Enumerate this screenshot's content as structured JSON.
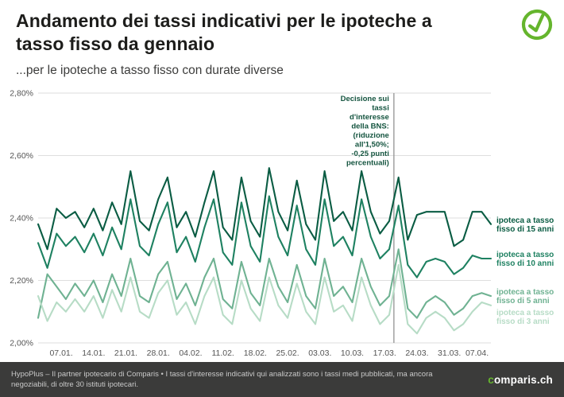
{
  "header": {
    "title": "Andamento dei tassi indicativi per le ipoteche a tasso fisso da gennaio",
    "subtitle": "...per le ipoteche a tasso fisso con durate diverse"
  },
  "footer": {
    "disclaimer": "HypoPlus – Il partner ipotecario di Comparis • I tassi d'interesse indicativi qui analizzati sono i tassi medi pubblicati, ma ancora negoziabili, di oltre 30 istituti ipotecari.",
    "logo_prefix": "c",
    "logo_rest": "omparis.ch"
  },
  "colors": {
    "title": "#1d1d1b",
    "axis_text": "#555555",
    "grid": "#dedede",
    "annotation_line": "#9a9a9a",
    "annotation_text": "#14543f",
    "footer_bg": "#3b3b3a",
    "brand_green": "#65b52d"
  },
  "chart_data": {
    "type": "line",
    "title": "Andamento dei tassi indicativi per le ipoteche a tasso fisso da gennaio",
    "xlabel": "",
    "ylabel": "",
    "ylim": [
      2.0,
      2.8
    ],
    "x_max": 98,
    "grid": "horizontal",
    "legend_position": "right",
    "yticks": [
      {
        "value": 2.0,
        "label": "2,00%"
      },
      {
        "value": 2.2,
        "label": "2,20%"
      },
      {
        "value": 2.4,
        "label": "2,40%"
      },
      {
        "value": 2.6,
        "label": "2,60%"
      },
      {
        "value": 2.8,
        "label": "2,80%"
      }
    ],
    "xticks": [
      {
        "day": 5,
        "label": "07.01."
      },
      {
        "day": 12,
        "label": "14.01."
      },
      {
        "day": 19,
        "label": "21.01."
      },
      {
        "day": 26,
        "label": "28.01."
      },
      {
        "day": 33,
        "label": "04.02."
      },
      {
        "day": 40,
        "label": "11.02."
      },
      {
        "day": 47,
        "label": "18.02."
      },
      {
        "day": 54,
        "label": "25.02."
      },
      {
        "day": 61,
        "label": "03.03."
      },
      {
        "day": 68,
        "label": "10.03."
      },
      {
        "day": 75,
        "label": "17.03."
      },
      {
        "day": 82,
        "label": "24.03."
      },
      {
        "day": 89,
        "label": "31.03."
      },
      {
        "day": 95,
        "label": "07.04."
      }
    ],
    "annotation": {
      "day": 77,
      "lines": [
        "Decisione sui",
        "tassi",
        "d'interesse",
        "della BNS:",
        "(riduzione",
        "all'1,50%;",
        "-0,25 punti",
        "percentuali)"
      ],
      "label": "Decisione sui tassi d'interesse della BNS: (riduzione all'1,50%; -0,25 punti percentuali)"
    },
    "series": [
      {
        "id": "fisso-15-anni",
        "name": "ipoteca a tasso fisso di 15 anni",
        "label_lines": [
          "ipoteca a tasso",
          "fisso di 15 anni"
        ],
        "color": "#0a5c43",
        "label_offset": 0,
        "day_step": 2,
        "values": [
          2.38,
          2.3,
          2.43,
          2.4,
          2.42,
          2.37,
          2.43,
          2.36,
          2.45,
          2.38,
          2.55,
          2.39,
          2.36,
          2.46,
          2.53,
          2.37,
          2.42,
          2.34,
          2.45,
          2.55,
          2.37,
          2.33,
          2.53,
          2.39,
          2.34,
          2.56,
          2.42,
          2.36,
          2.52,
          2.38,
          2.33,
          2.55,
          2.39,
          2.42,
          2.36,
          2.55,
          2.42,
          2.35,
          2.39,
          2.53,
          2.33,
          2.41,
          2.42,
          2.42,
          2.42,
          2.31,
          2.33,
          2.42,
          2.42,
          2.38
        ]
      },
      {
        "id": "fisso-10-anni",
        "name": "ipoteca a tasso fisso di 10 anni",
        "label_lines": [
          "ipoteca a tasso",
          "fisso di 10 anni"
        ],
        "color": "#1e8161",
        "label_offset": 0,
        "day_step": 2,
        "values": [
          2.32,
          2.24,
          2.35,
          2.31,
          2.34,
          2.29,
          2.35,
          2.28,
          2.37,
          2.3,
          2.46,
          2.31,
          2.28,
          2.38,
          2.45,
          2.29,
          2.34,
          2.26,
          2.37,
          2.46,
          2.29,
          2.25,
          2.45,
          2.31,
          2.26,
          2.47,
          2.34,
          2.28,
          2.44,
          2.3,
          2.25,
          2.46,
          2.31,
          2.34,
          2.28,
          2.46,
          2.34,
          2.27,
          2.3,
          2.44,
          2.25,
          2.21,
          2.26,
          2.27,
          2.26,
          2.22,
          2.24,
          2.28,
          2.27,
          2.27
        ]
      },
      {
        "id": "fisso-5-anni",
        "name": "ipoteca a tasso fisso di 5 anni",
        "label_lines": [
          "ipoteca a tasso",
          "fisso di 5 anni"
        ],
        "color": "#6fb292",
        "label_offset": 0,
        "day_step": 2,
        "values": [
          2.08,
          2.22,
          2.18,
          2.14,
          2.19,
          2.15,
          2.2,
          2.13,
          2.22,
          2.15,
          2.27,
          2.15,
          2.13,
          2.22,
          2.26,
          2.14,
          2.19,
          2.12,
          2.21,
          2.27,
          2.14,
          2.11,
          2.26,
          2.16,
          2.12,
          2.27,
          2.18,
          2.13,
          2.25,
          2.15,
          2.11,
          2.27,
          2.15,
          2.18,
          2.13,
          2.27,
          2.18,
          2.12,
          2.15,
          2.3,
          2.11,
          2.08,
          2.13,
          2.15,
          2.13,
          2.09,
          2.11,
          2.15,
          2.16,
          2.15
        ]
      },
      {
        "id": "fisso-3-anni",
        "name": "ipoteca a tasso fisso di 3 anni",
        "label_lines": [
          "ipoteca a tasso",
          "fisso di 3 anni"
        ],
        "color": "#b7dcc6",
        "label_offset": 14,
        "day_step": 2,
        "values": [
          2.15,
          2.07,
          2.13,
          2.1,
          2.14,
          2.1,
          2.15,
          2.08,
          2.17,
          2.1,
          2.21,
          2.1,
          2.08,
          2.16,
          2.2,
          2.09,
          2.13,
          2.06,
          2.15,
          2.21,
          2.09,
          2.06,
          2.2,
          2.11,
          2.07,
          2.21,
          2.12,
          2.08,
          2.19,
          2.1,
          2.06,
          2.21,
          2.1,
          2.12,
          2.07,
          2.21,
          2.12,
          2.06,
          2.09,
          2.25,
          2.06,
          2.03,
          2.08,
          2.1,
          2.08,
          2.04,
          2.06,
          2.1,
          2.13,
          2.12
        ]
      }
    ]
  }
}
